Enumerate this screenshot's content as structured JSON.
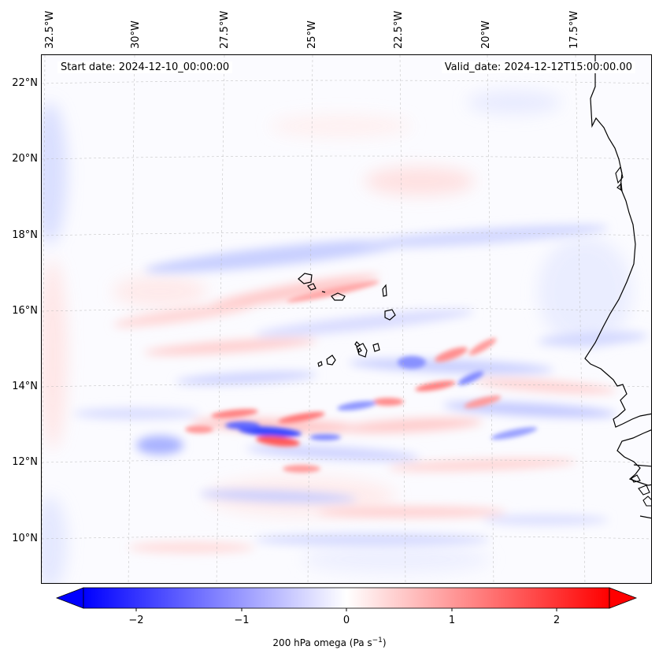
{
  "map": {
    "longitude_labels": [
      "32.5°W",
      "30°W",
      "27.5°W",
      "25°W",
      "22.5°W",
      "20°W",
      "17.5°W"
    ],
    "latitude_labels": [
      "22°N",
      "20°N",
      "18°N",
      "16°N",
      "14°N",
      "12°N",
      "10°N"
    ],
    "start_date": "Start date: 2024-12-10_00:00:00",
    "valid_date": "Valid_date: 2024-12-12T15:00:00.00",
    "field": "200 hPa omega",
    "gridlines": true,
    "coastline_color": "#000000"
  },
  "colorbar": {
    "label_main": "200 hPa omega (Pa s",
    "label_exp": "−1",
    "label_end": ")",
    "tick_labels": [
      "−2",
      "−1",
      "0",
      "1",
      "2"
    ],
    "tick_values": [
      -2,
      -1,
      0,
      1,
      2
    ],
    "range": [
      -2.5,
      2.5
    ],
    "extend": "both",
    "colormap": "bwr",
    "low_color": "#0000ff",
    "mid_color": "#ffffff",
    "high_color": "#ff0000"
  }
}
